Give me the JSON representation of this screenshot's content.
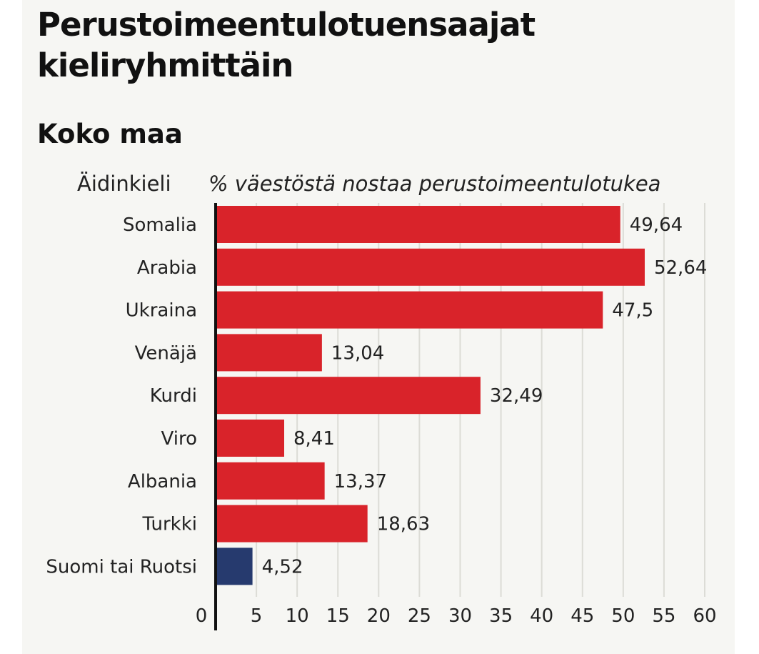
{
  "chart_data": {
    "type": "bar",
    "orientation": "horizontal",
    "title": "Perustoimeentulotuensaajat kieliryhmittäin",
    "subtitle": "Koko maa",
    "category_axis_label": "Äidinkieli",
    "value_axis_label": "% väestöstä nostaa perustoimeentulotukea",
    "categories": [
      "Somalia",
      "Arabia",
      "Ukraina",
      "Venäjä",
      "Kurdi",
      "Viro",
      "Albania",
      "Turkki",
      "Suomi tai Ruotsi"
    ],
    "values": [
      49.64,
      52.64,
      47.5,
      13.04,
      32.49,
      8.41,
      13.37,
      18.63,
      4.52
    ],
    "value_labels": [
      "49,64",
      "52,64",
      "47,5",
      "13,04",
      "32,49",
      "8,41",
      "13,37",
      "18,63",
      "4,52"
    ],
    "bar_colors": [
      "#d9232a",
      "#d9232a",
      "#d9232a",
      "#d9232a",
      "#d9232a",
      "#d9232a",
      "#d9232a",
      "#d9232a",
      "#263a6e"
    ],
    "xlim": [
      0,
      60
    ],
    "xticks": [
      0,
      5,
      10,
      15,
      20,
      25,
      30,
      35,
      40,
      45,
      50,
      55,
      60
    ],
    "grid": true,
    "legend": "none"
  }
}
